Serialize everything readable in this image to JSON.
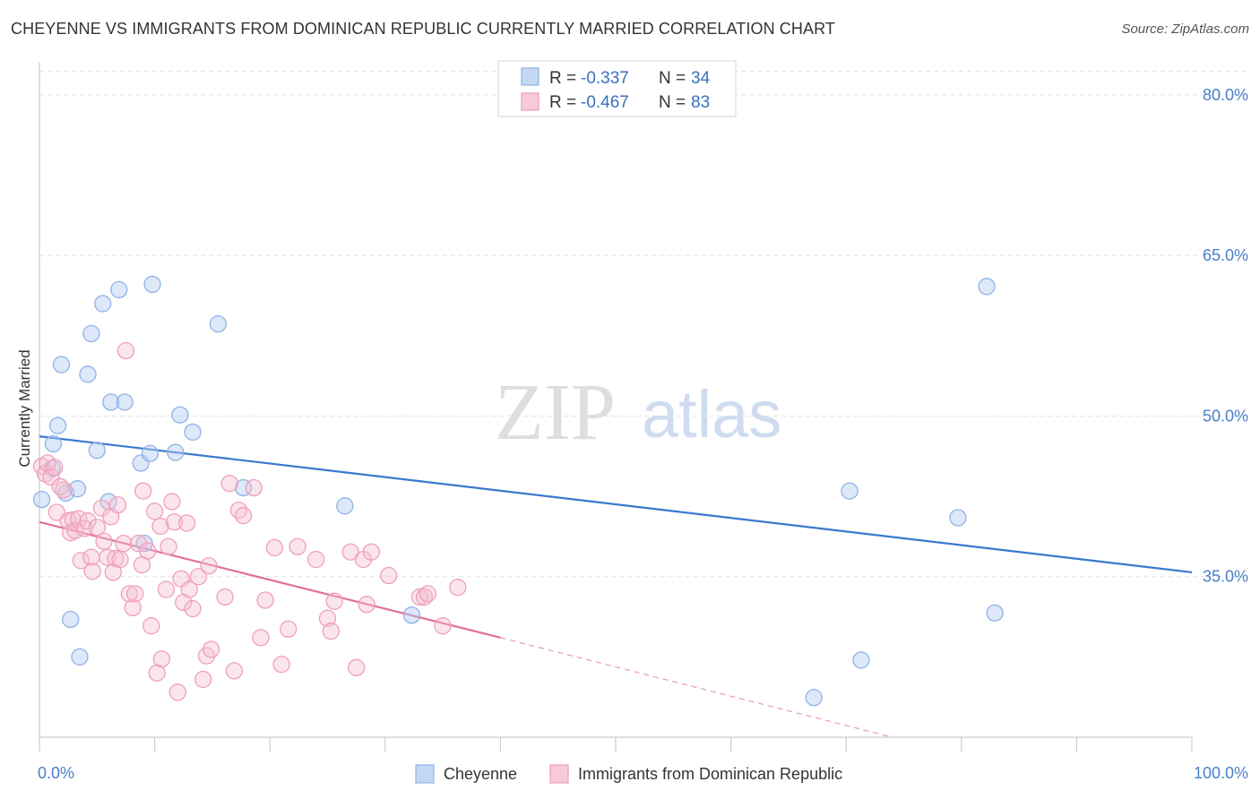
{
  "title": "CHEYENNE VS IMMIGRANTS FROM DOMINICAN REPUBLIC CURRENTLY MARRIED CORRELATION CHART",
  "source": "Source: ZipAtlas.com",
  "watermark": {
    "zip": "ZIP",
    "atlas": "atlas"
  },
  "legend": {
    "r_label": "R =",
    "n_label": "N =",
    "entries": [
      {
        "r": "-0.337",
        "n": "34"
      },
      {
        "r": "-0.467",
        "n": "83"
      }
    ]
  },
  "chart_data": {
    "type": "scatter",
    "xlabel": "",
    "ylabel": "Currently Married",
    "xlim": [
      0,
      100
    ],
    "ylim": [
      20,
      83
    ],
    "x_tick_labels": [
      "0.0%",
      "100.0%"
    ],
    "y_ticks": [
      35,
      50,
      65,
      80
    ],
    "y_tick_labels": [
      "35.0%",
      "50.0%",
      "65.0%",
      "80.0%"
    ],
    "grid": true,
    "legend_position": "bottom",
    "colors": {
      "cheyenne": "#6b9de0",
      "dominican": "#ee8aa8",
      "cheyenne_line": "#3a78d0",
      "dominican_line": "#e0709a"
    },
    "series": [
      {
        "name": "Cheyenne",
        "points": [
          [
            0.2,
            42.2
          ],
          [
            1.1,
            45.1
          ],
          [
            1.2,
            47.4
          ],
          [
            1.6,
            49.1
          ],
          [
            1.9,
            54.8
          ],
          [
            2.3,
            42.8
          ],
          [
            2.7,
            31.0
          ],
          [
            3.3,
            43.2
          ],
          [
            3.5,
            27.5
          ],
          [
            4.2,
            53.9
          ],
          [
            4.5,
            57.7
          ],
          [
            5.0,
            46.8
          ],
          [
            5.5,
            60.5
          ],
          [
            6.0,
            42.0
          ],
          [
            6.2,
            51.3
          ],
          [
            6.9,
            61.8
          ],
          [
            7.4,
            51.3
          ],
          [
            8.8,
            45.6
          ],
          [
            9.1,
            38.1
          ],
          [
            9.6,
            46.5
          ],
          [
            9.8,
            62.3
          ],
          [
            11.8,
            46.6
          ],
          [
            12.2,
            50.1
          ],
          [
            13.3,
            48.5
          ],
          [
            15.5,
            58.6
          ],
          [
            17.7,
            43.3
          ],
          [
            26.5,
            41.6
          ],
          [
            32.3,
            31.4
          ],
          [
            67.2,
            23.7
          ],
          [
            70.3,
            43.0
          ],
          [
            71.3,
            27.2
          ],
          [
            79.7,
            40.5
          ],
          [
            82.9,
            31.6
          ],
          [
            82.2,
            62.1
          ]
        ],
        "trend": {
          "x": [
            0,
            100
          ],
          "y": [
            48.1,
            35.4
          ]
        }
      },
      {
        "name": "Immigrants from Dominican Republic",
        "points": [
          [
            0.2,
            45.3
          ],
          [
            0.5,
            44.6
          ],
          [
            0.7,
            45.6
          ],
          [
            1.0,
            44.3
          ],
          [
            1.3,
            45.2
          ],
          [
            1.5,
            41.0
          ],
          [
            1.8,
            43.4
          ],
          [
            2.1,
            43.1
          ],
          [
            2.5,
            40.2
          ],
          [
            2.7,
            39.1
          ],
          [
            2.9,
            40.3
          ],
          [
            3.1,
            39.3
          ],
          [
            3.4,
            40.4
          ],
          [
            3.6,
            36.5
          ],
          [
            3.9,
            39.5
          ],
          [
            4.2,
            40.2
          ],
          [
            4.5,
            36.8
          ],
          [
            4.6,
            35.5
          ],
          [
            5.0,
            39.6
          ],
          [
            5.4,
            41.4
          ],
          [
            5.6,
            38.3
          ],
          [
            5.9,
            36.8
          ],
          [
            6.2,
            40.6
          ],
          [
            6.4,
            35.4
          ],
          [
            6.6,
            36.7
          ],
          [
            6.8,
            41.7
          ],
          [
            7.0,
            36.6
          ],
          [
            7.3,
            38.1
          ],
          [
            7.5,
            56.1
          ],
          [
            7.8,
            33.4
          ],
          [
            8.1,
            32.1
          ],
          [
            8.3,
            33.4
          ],
          [
            8.6,
            38.1
          ],
          [
            8.9,
            36.1
          ],
          [
            9.0,
            43.0
          ],
          [
            9.4,
            37.4
          ],
          [
            9.7,
            30.4
          ],
          [
            10.0,
            41.1
          ],
          [
            10.2,
            26.0
          ],
          [
            10.5,
            39.7
          ],
          [
            10.6,
            27.3
          ],
          [
            11.0,
            33.8
          ],
          [
            11.2,
            37.8
          ],
          [
            11.5,
            42.0
          ],
          [
            11.7,
            40.1
          ],
          [
            12.0,
            24.2
          ],
          [
            12.3,
            34.8
          ],
          [
            12.5,
            32.6
          ],
          [
            12.8,
            40.0
          ],
          [
            13.0,
            33.8
          ],
          [
            13.3,
            32.0
          ],
          [
            13.8,
            35.0
          ],
          [
            14.2,
            25.4
          ],
          [
            14.5,
            27.6
          ],
          [
            14.7,
            36.0
          ],
          [
            14.9,
            28.2
          ],
          [
            16.1,
            33.1
          ],
          [
            16.5,
            43.7
          ],
          [
            16.9,
            26.2
          ],
          [
            17.3,
            41.2
          ],
          [
            17.7,
            40.7
          ],
          [
            18.6,
            43.3
          ],
          [
            19.2,
            29.3
          ],
          [
            19.6,
            32.8
          ],
          [
            20.4,
            37.7
          ],
          [
            21.0,
            26.8
          ],
          [
            21.6,
            30.1
          ],
          [
            22.4,
            37.8
          ],
          [
            24.0,
            36.6
          ],
          [
            25.0,
            31.1
          ],
          [
            25.3,
            29.9
          ],
          [
            25.6,
            32.7
          ],
          [
            27.0,
            37.3
          ],
          [
            27.5,
            26.5
          ],
          [
            28.1,
            36.6
          ],
          [
            28.4,
            32.4
          ],
          [
            28.8,
            37.3
          ],
          [
            30.3,
            35.1
          ],
          [
            33.0,
            33.1
          ],
          [
            33.4,
            33.1
          ],
          [
            33.7,
            33.4
          ],
          [
            35.0,
            30.4
          ],
          [
            36.3,
            34.0
          ]
        ],
        "trend": {
          "x": [
            0,
            40
          ],
          "y": [
            40.1,
            29.3
          ]
        },
        "trend_dashed": {
          "x": [
            40,
            74
          ],
          "y": [
            29.3,
            20
          ]
        }
      }
    ]
  }
}
